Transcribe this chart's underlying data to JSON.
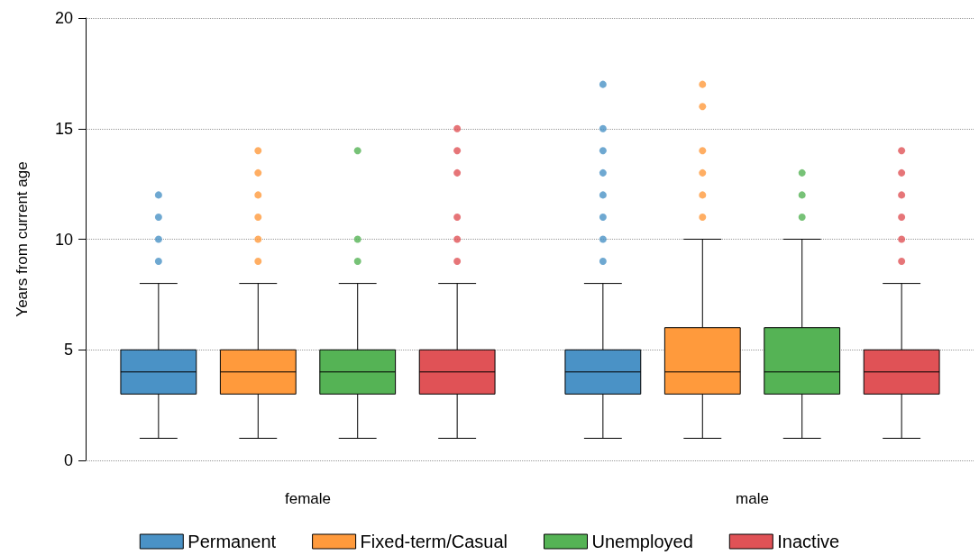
{
  "chart_data": {
    "type": "box",
    "ylabel": "Years from current age",
    "categories": [
      "female",
      "male"
    ],
    "ylim": [
      0,
      20
    ],
    "yticks": [
      0,
      5,
      10,
      15,
      20
    ],
    "grid": "y",
    "legend": "bottom",
    "series": [
      {
        "name": "Permanent",
        "color": "#4a92c6",
        "boxes": [
          {
            "low": 1,
            "q1": 3,
            "median": 4,
            "q3": 5,
            "high": 8,
            "outliers": [
              9,
              10,
              11,
              12
            ]
          },
          {
            "low": 1,
            "q1": 3,
            "median": 4,
            "q3": 5,
            "high": 8,
            "outliers": [
              9,
              10,
              11,
              12,
              13,
              14,
              15,
              17
            ]
          }
        ]
      },
      {
        "name": "Fixed-term/Casual",
        "color": "#ff9a3c",
        "boxes": [
          {
            "low": 1,
            "q1": 3,
            "median": 4,
            "q3": 5,
            "high": 8,
            "outliers": [
              9,
              10,
              11,
              12,
              13,
              14
            ]
          },
          {
            "low": 1,
            "q1": 3,
            "median": 4,
            "q3": 6,
            "high": 10,
            "outliers": [
              11,
              12,
              13,
              14,
              16,
              17
            ]
          }
        ]
      },
      {
        "name": "Unemployed",
        "color": "#55b355",
        "boxes": [
          {
            "low": 1,
            "q1": 3,
            "median": 4,
            "q3": 5,
            "high": 8,
            "outliers": [
              9,
              10,
              14
            ]
          },
          {
            "low": 1,
            "q1": 3,
            "median": 4,
            "q3": 6,
            "high": 10,
            "outliers": [
              11,
              12,
              13
            ]
          }
        ]
      },
      {
        "name": "Inactive",
        "color": "#e05256",
        "boxes": [
          {
            "low": 1,
            "q1": 3,
            "median": 4,
            "q3": 5,
            "high": 8,
            "outliers": [
              9,
              10,
              11,
              13,
              14,
              15
            ]
          },
          {
            "low": 1,
            "q1": 3,
            "median": 4,
            "q3": 5,
            "high": 8,
            "outliers": [
              9,
              10,
              11,
              12,
              13,
              14
            ]
          }
        ]
      }
    ]
  }
}
